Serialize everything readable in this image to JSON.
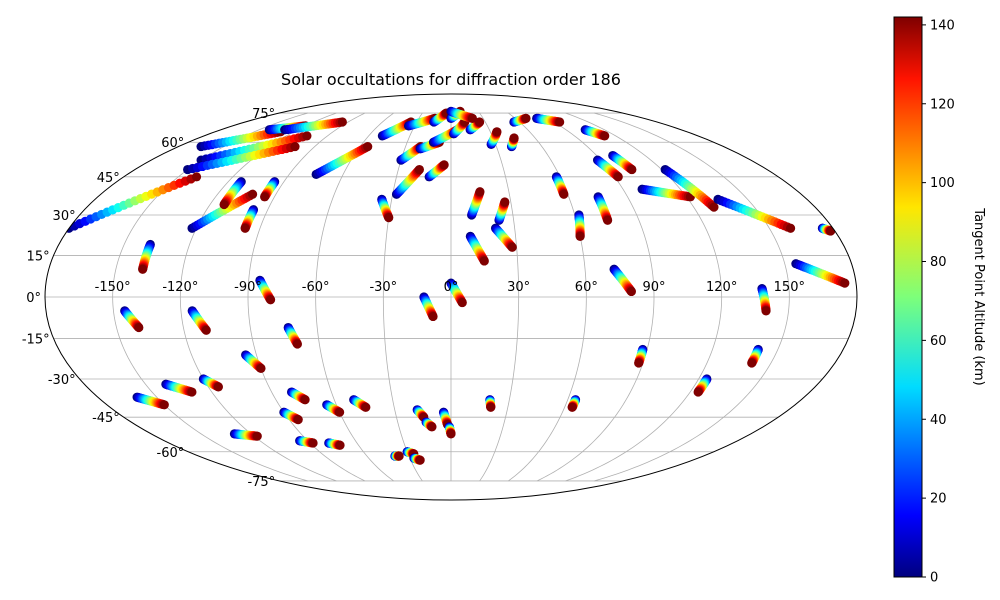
{
  "chart_data": {
    "type": "scatter",
    "projection": "mollweide",
    "title": "Solar occultations for diffraction order 186",
    "colorbar": {
      "label": "Tangent Point Altitude (km)",
      "range": [
        0,
        142
      ],
      "colormap": "jet",
      "ticks": [
        0,
        20,
        40,
        60,
        80,
        100,
        120,
        140
      ],
      "tick_labels": [
        "0",
        "20",
        "40",
        "60",
        "80",
        "100",
        "120",
        "140"
      ]
    },
    "xticks": [
      {
        "value": -150,
        "label": "-150°"
      },
      {
        "value": -120,
        "label": "-120°"
      },
      {
        "value": -90,
        "label": "-90°"
      },
      {
        "value": -60,
        "label": "-60°"
      },
      {
        "value": -30,
        "label": "-30°"
      },
      {
        "value": 0,
        "label": "0°"
      },
      {
        "value": 30,
        "label": "30°"
      },
      {
        "value": 60,
        "label": "60°"
      },
      {
        "value": 90,
        "label": "90°"
      },
      {
        "value": 120,
        "label": "120°"
      },
      {
        "value": 150,
        "label": "150°"
      }
    ],
    "yticks": [
      {
        "value": 75,
        "label": "75°"
      },
      {
        "value": 60,
        "label": "60°"
      },
      {
        "value": 45,
        "label": "45°"
      },
      {
        "value": 30,
        "label": "30°"
      },
      {
        "value": 15,
        "label": "15°"
      },
      {
        "value": 0,
        "label": "0°"
      },
      {
        "value": -15,
        "label": "-15°"
      },
      {
        "value": -30,
        "label": "-30°"
      },
      {
        "value": -45,
        "label": "-45°"
      },
      {
        "value": -60,
        "label": "-60°"
      },
      {
        "value": -75,
        "label": "-75°"
      }
    ],
    "grid_lon_step_deg": 30,
    "grid_lat_step_deg": 15,
    "grid": true,
    "occultation_tracks": [
      {
        "lon0": -180,
        "lat0": 25,
        "lon1": -140,
        "lat1": 45
      },
      {
        "lon0": -165,
        "lat0": 58,
        "lon1": -130,
        "lat1": 65
      },
      {
        "lon0": -150,
        "lat0": 52,
        "lon1": -105,
        "lat1": 63
      },
      {
        "lon0": -150,
        "lat0": 48,
        "lon1": -103,
        "lat1": 58
      },
      {
        "lon0": -142,
        "lat0": 66,
        "lon1": -120,
        "lat1": 68
      },
      {
        "lon0": -130,
        "lat0": 66,
        "lon1": -95,
        "lat1": 70
      },
      {
        "lon0": -138,
        "lat0": 19,
        "lon1": -138,
        "lat1": 10
      },
      {
        "lon0": -122,
        "lat0": 25,
        "lon1": -102,
        "lat1": 38
      },
      {
        "lon0": -113,
        "lat0": 43,
        "lon1": -113,
        "lat1": 34
      },
      {
        "lon0": -97,
        "lat0": 32,
        "lon1": -97,
        "lat1": 25
      },
      {
        "lon0": -95,
        "lat0": 43,
        "lon1": -95,
        "lat1": 37
      },
      {
        "lon0": -75,
        "lat0": 46,
        "lon1": -55,
        "lat1": 58
      },
      {
        "lon0": -50,
        "lat0": 63,
        "lon1": -35,
        "lat1": 70
      },
      {
        "lon0": -35,
        "lat0": 68,
        "lon1": -15,
        "lat1": 72
      },
      {
        "lon0": -85,
        "lat0": 6,
        "lon1": -80,
        "lat1": -1
      },
      {
        "lon0": -35,
        "lat0": 36,
        "lon1": -30,
        "lat1": 29
      },
      {
        "lon0": -28,
        "lat0": 38,
        "lon1": -18,
        "lat1": 48
      },
      {
        "lon0": -30,
        "lat0": 52,
        "lon1": -20,
        "lat1": 58
      },
      {
        "lon0": -20,
        "lat0": 57,
        "lon1": -8,
        "lat1": 60
      },
      {
        "lon0": -12,
        "lat0": 45,
        "lon1": -4,
        "lat1": 50
      },
      {
        "lon0": -12,
        "lat0": 60,
        "lon1": 5,
        "lat1": 66
      },
      {
        "lon0": 2,
        "lat0": 64,
        "lon1": 12,
        "lat1": 70
      },
      {
        "lon0": 15,
        "lat0": 66,
        "lon1": 25,
        "lat1": 70
      },
      {
        "lon0": -15,
        "lat0": 70,
        "lon1": -5,
        "lat1": 75
      },
      {
        "lon0": 0,
        "lat0": 72,
        "lon1": 10,
        "lat1": 76
      },
      {
        "lon0": 10,
        "lat0": 30,
        "lon1": 15,
        "lat1": 39
      },
      {
        "lon0": 23,
        "lat0": 28,
        "lon1": 27,
        "lat1": 35
      },
      {
        "lon0": 9,
        "lat0": 22,
        "lon1": 15,
        "lat1": 13
      },
      {
        "lon0": 21,
        "lat0": 25,
        "lon1": 28,
        "lat1": 18
      },
      {
        "lon0": 27,
        "lat0": 59,
        "lon1": 35,
        "lat1": 65
      },
      {
        "lon0": 40,
        "lat0": 58,
        "lon1": 45,
        "lat1": 62
      },
      {
        "lon0": 0,
        "lat0": 5,
        "lon1": 5,
        "lat1": -2
      },
      {
        "lon0": -12,
        "lat0": 0,
        "lon1": -8,
        "lat1": -7
      },
      {
        "lon0": 58,
        "lat0": 45,
        "lon1": 58,
        "lat1": 38
      },
      {
        "lon0": 62,
        "lat0": 30,
        "lon1": 60,
        "lat1": 22
      },
      {
        "lon0": 75,
        "lat0": 37,
        "lon1": 75,
        "lat1": 28
      },
      {
        "lon0": 73,
        "lat0": 10,
        "lon1": 80,
        "lat1": 2
      },
      {
        "lon0": 88,
        "lat0": 52,
        "lon1": 92,
        "lat1": 45
      },
      {
        "lon0": 100,
        "lat0": 54,
        "lon1": 103,
        "lat1": 48
      },
      {
        "lon0": 100,
        "lat0": 40,
        "lon1": 122,
        "lat1": 37
      },
      {
        "lon0": 122,
        "lat0": 48,
        "lon1": 130,
        "lat1": 33
      },
      {
        "lon0": 135,
        "lat0": 36,
        "lon1": 160,
        "lat1": 25
      },
      {
        "lon0": 155,
        "lat0": 12,
        "lon1": 175,
        "lat1": 5
      },
      {
        "lon0": 138,
        "lat0": 3,
        "lon1": 140,
        "lat1": -5
      },
      {
        "lon0": -145,
        "lat0": -5,
        "lon1": -140,
        "lat1": -11
      },
      {
        "lon0": -115,
        "lat0": -5,
        "lon1": -110,
        "lat1": -12
      },
      {
        "lon0": -73,
        "lat0": -11,
        "lon1": -70,
        "lat1": -17
      },
      {
        "lon0": -95,
        "lat0": -21,
        "lon1": -90,
        "lat1": -26
      },
      {
        "lon0": -140,
        "lat0": -32,
        "lon1": -130,
        "lat1": -35
      },
      {
        "lon0": -160,
        "lat0": -37,
        "lon1": -150,
        "lat1": -40
      },
      {
        "lon0": -120,
        "lat0": -30,
        "lon1": -115,
        "lat1": -33
      },
      {
        "lon0": -80,
        "lat0": -35,
        "lon1": -75,
        "lat1": -38
      },
      {
        "lon0": -65,
        "lat0": -40,
        "lon1": -60,
        "lat1": -43
      },
      {
        "lon0": -50,
        "lat0": -38,
        "lon1": -45,
        "lat1": -41
      },
      {
        "lon0": -90,
        "lat0": -43,
        "lon1": -85,
        "lat1": -46
      },
      {
        "lon0": -130,
        "lat0": -52,
        "lon1": -118,
        "lat1": -53
      },
      {
        "lon0": -95,
        "lat0": -55,
        "lon1": -88,
        "lat1": -56
      },
      {
        "lon0": -78,
        "lat0": -56,
        "lon1": -72,
        "lat1": -57
      },
      {
        "lon0": -18,
        "lat0": -42,
        "lon1": -15,
        "lat1": -45
      },
      {
        "lon0": -14,
        "lat0": -47,
        "lon1": -11,
        "lat1": -49
      },
      {
        "lon0": -4,
        "lat0": -43,
        "lon1": -2,
        "lat1": -48
      },
      {
        "lon0": -1,
        "lat0": -49,
        "lon1": 0,
        "lat1": -52
      },
      {
        "lon0": -40,
        "lat0": -62,
        "lon1": -37,
        "lat1": -62
      },
      {
        "lon0": -30,
        "lat0": -60,
        "lon1": -26,
        "lat1": -61
      },
      {
        "lon0": -27,
        "lat0": -63,
        "lon1": -23,
        "lat1": -64
      },
      {
        "lon0": 20,
        "lat0": -38,
        "lon1": 21,
        "lat1": -41
      },
      {
        "lon0": 64,
        "lat0": -38,
        "lon1": 64,
        "lat1": -41
      },
      {
        "lon0": 88,
        "lat0": -19,
        "lon1": 88,
        "lat1": -24
      },
      {
        "lon0": 124,
        "lat0": -30,
        "lon1": 124,
        "lat1": -35
      },
      {
        "lon0": 141,
        "lat0": -19,
        "lon1": 141,
        "lat1": -24
      },
      {
        "lon0": 0,
        "lat0": 76,
        "lon1": 20,
        "lat1": 72
      },
      {
        "lon0": 55,
        "lat0": 70,
        "lon1": 70,
        "lat1": 72
      },
      {
        "lon0": 80,
        "lat0": 72,
        "lon1": 95,
        "lat1": 70
      },
      {
        "lon0": 105,
        "lat0": 66,
        "lon1": 112,
        "lat1": 63
      },
      {
        "lon0": 175,
        "lat0": 25,
        "lon1": 178,
        "lat1": 24
      }
    ]
  }
}
